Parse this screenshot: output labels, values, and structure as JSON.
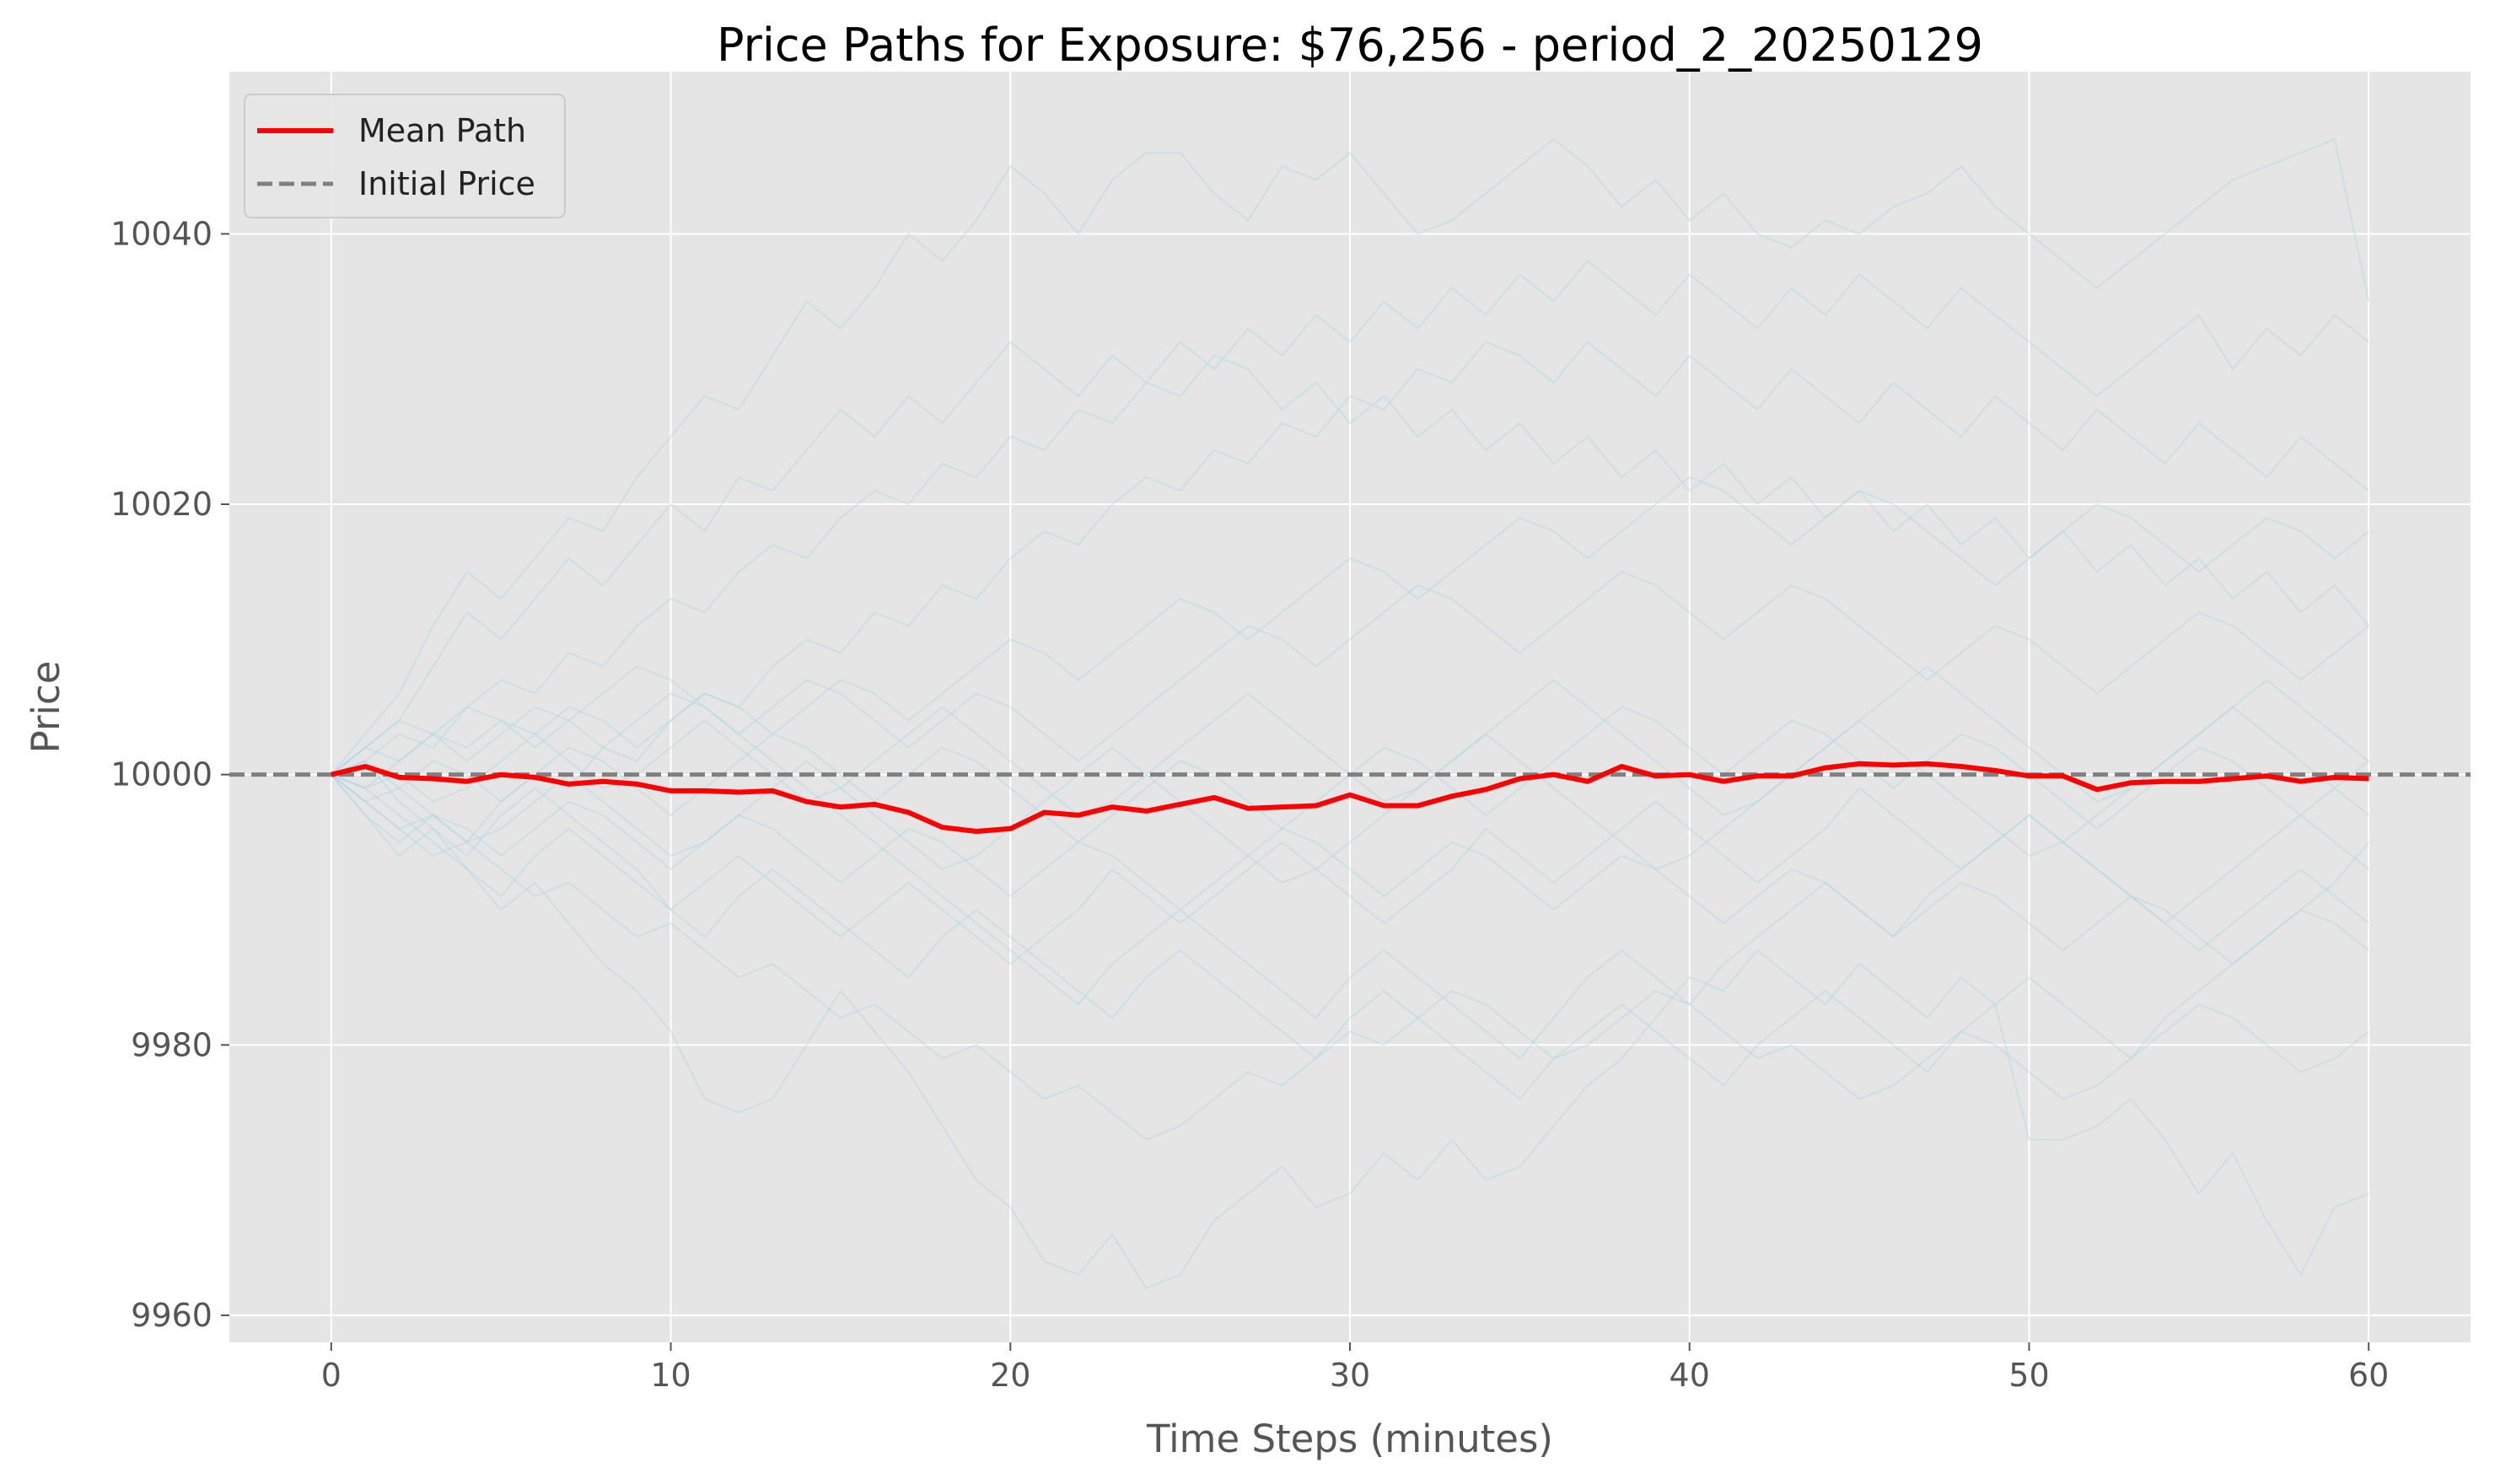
{
  "chart_data": {
    "type": "line",
    "title": "Price Paths for Exposure: $76,256 - period_2_20250129",
    "xlabel": "Time Steps (minutes)",
    "ylabel": "Price",
    "xlim": [
      -3,
      63
    ],
    "ylim": [
      9958,
      10052
    ],
    "x_ticks": [
      0,
      10,
      20,
      30,
      40,
      50,
      60
    ],
    "y_ticks": [
      9960,
      9980,
      10000,
      10020,
      10040
    ],
    "grid": true,
    "legend_position": "top-left",
    "background_color": "#e5e5e5",
    "grid_color": "#ffffff",
    "simulated_path_color": "#add8e6",
    "legend": [
      {
        "label": "Mean Path",
        "style": "solid",
        "color": "#ff0000"
      },
      {
        "label": "Initial Price",
        "style": "dashed",
        "color": "#808080"
      }
    ],
    "initial_price": 10000,
    "mean_path": {
      "name": "Mean Path",
      "color": "#ff0000",
      "x": [
        0,
        1,
        2,
        3,
        4,
        5,
        6,
        7,
        8,
        9,
        10,
        11,
        12,
        13,
        14,
        15,
        16,
        17,
        18,
        19,
        20,
        21,
        22,
        23,
        24,
        25,
        26,
        27,
        28,
        29,
        30,
        31,
        32,
        33,
        34,
        35,
        36,
        37,
        38,
        39,
        40,
        41,
        42,
        43,
        44,
        45,
        46,
        47,
        48,
        49,
        50,
        51,
        52,
        53,
        54,
        55,
        56,
        57,
        58,
        59,
        60
      ],
      "values": [
        10000.0,
        10000.6,
        9999.8,
        9999.7,
        9999.5,
        10000.0,
        9999.8,
        9999.3,
        9999.5,
        9999.3,
        9998.8,
        9998.8,
        9998.7,
        9998.8,
        9998.0,
        9997.6,
        9997.8,
        9997.2,
        9996.1,
        9995.8,
        9996.0,
        9997.2,
        9997.0,
        9997.6,
        9997.3,
        9997.8,
        9998.3,
        9997.5,
        9997.6,
        9997.7,
        9998.5,
        9997.7,
        9997.7,
        9998.4,
        9998.9,
        9999.7,
        10000.0,
        9999.5,
        10000.6,
        9999.9,
        10000.0,
        9999.5,
        9999.9,
        9999.9,
        10000.5,
        10000.8,
        10000.7,
        10000.8,
        10000.6,
        10000.3,
        9999.9,
        9999.9,
        9998.9,
        9999.4,
        9999.5,
        9999.5,
        9999.7,
        9999.9,
        9999.5,
        9999.8,
        9999.7
      ]
    },
    "simulated_paths_x": [
      0,
      1,
      2,
      3,
      4,
      5,
      6,
      7,
      8,
      9,
      10,
      11,
      12,
      13,
      14,
      15,
      16,
      17,
      18,
      19,
      20,
      21,
      22,
      23,
      24,
      25,
      26,
      27,
      28,
      29,
      30,
      31,
      32,
      33,
      34,
      35,
      36,
      37,
      38,
      39,
      40,
      41,
      42,
      43,
      44,
      45,
      46,
      47,
      48,
      49,
      50,
      51,
      52,
      53,
      54,
      55,
      56,
      57,
      58,
      59,
      60
    ],
    "simulated_paths": [
      [
        10000,
        10003,
        10006,
        10011,
        10015,
        10013,
        10016,
        10019,
        10018,
        10022,
        10025,
        10028,
        10027,
        10031,
        10035,
        10033,
        10036,
        10040,
        10038,
        10041,
        10045,
        10043,
        10040,
        10044,
        10046,
        10046,
        10043,
        10041,
        10045,
        10044,
        10046,
        10043,
        10040,
        10041,
        10043,
        10045,
        10047,
        10045,
        10042,
        10044,
        10041,
        10043,
        10040,
        10039,
        10041,
        10040,
        10042,
        10043,
        10045,
        10042,
        10040,
        10038,
        10036,
        10038,
        10040,
        10042,
        10044,
        10045,
        10046,
        10047,
        10035
      ],
      [
        10000,
        10002,
        10004,
        10008,
        10012,
        10010,
        10013,
        10016,
        10014,
        10017,
        10020,
        10018,
        10022,
        10021,
        10024,
        10027,
        10025,
        10028,
        10026,
        10029,
        10032,
        10030,
        10028,
        10031,
        10029,
        10032,
        10030,
        10033,
        10031,
        10034,
        10032,
        10035,
        10033,
        10036,
        10034,
        10037,
        10035,
        10038,
        10036,
        10034,
        10037,
        10035,
        10033,
        10036,
        10034,
        10037,
        10035,
        10033,
        10036,
        10034,
        10032,
        10030,
        10028,
        10030,
        10032,
        10034,
        10030,
        10033,
        10031,
        10034,
        10032
      ],
      [
        10000,
        10001,
        10003,
        10002,
        10005,
        10007,
        10006,
        10009,
        10008,
        10011,
        10013,
        10012,
        10015,
        10017,
        10016,
        10019,
        10021,
        10020,
        10023,
        10022,
        10025,
        10024,
        10027,
        10026,
        10029,
        10028,
        10031,
        10030,
        10027,
        10029,
        10026,
        10028,
        10025,
        10027,
        10024,
        10026,
        10023,
        10025,
        10022,
        10024,
        10021,
        10023,
        10020,
        10022,
        10019,
        10021,
        10018,
        10020,
        10017,
        10019,
        10016,
        10018,
        10015,
        10017,
        10014,
        10016,
        10013,
        10015,
        10012,
        10014,
        10011
      ],
      [
        10000,
        9998,
        9996,
        9997,
        9995,
        9998,
        10000,
        9999,
        10002,
        10001,
        10004,
        10006,
        10005,
        10008,
        10010,
        10009,
        10012,
        10011,
        10014,
        10013,
        10016,
        10018,
        10017,
        10020,
        10022,
        10021,
        10024,
        10023,
        10026,
        10025,
        10028,
        10027,
        10030,
        10029,
        10032,
        10031,
        10029,
        10032,
        10030,
        10028,
        10031,
        10029,
        10027,
        10030,
        10028,
        10026,
        10029,
        10027,
        10025,
        10028,
        10026,
        10024,
        10027,
        10025,
        10023,
        10026,
        10024,
        10022,
        10025,
        10023,
        10021
      ],
      [
        10000,
        9999,
        10001,
        10003,
        10002,
        10004,
        10003,
        10005,
        10004,
        10002,
        10004,
        10006,
        10005,
        10003,
        10005,
        10007,
        10006,
        10004,
        10006,
        10008,
        10010,
        10009,
        10007,
        10009,
        10011,
        10013,
        10012,
        10010,
        10012,
        10014,
        10016,
        10015,
        10013,
        10015,
        10017,
        10019,
        10018,
        10016,
        10018,
        10020,
        10022,
        10021,
        10019,
        10017,
        10019,
        10021,
        10020,
        10018,
        10016,
        10014,
        10016,
        10018,
        10020,
        10019,
        10017,
        10015,
        10017,
        10019,
        10018,
        10016,
        10018
      ],
      [
        10000,
        10002,
        10001,
        10003,
        10005,
        10004,
        10002,
        10004,
        10006,
        10008,
        10007,
        10005,
        10003,
        10005,
        10007,
        10006,
        10004,
        10002,
        10004,
        10006,
        10005,
        10003,
        10001,
        10003,
        10005,
        10007,
        10009,
        10011,
        10010,
        10008,
        10010,
        10012,
        10014,
        10013,
        10011,
        10009,
        10011,
        10013,
        10015,
        10014,
        10012,
        10010,
        10012,
        10014,
        10013,
        10011,
        10009,
        10007,
        10009,
        10011,
        10010,
        10008,
        10006,
        10008,
        10010,
        10012,
        10011,
        10009,
        10007,
        10009,
        10011
      ],
      [
        10000,
        10001,
        9999,
        10001,
        10000,
        9998,
        10000,
        10002,
        10001,
        9999,
        9997,
        9999,
        10001,
        10003,
        10002,
        10000,
        9998,
        10000,
        10002,
        10001,
        9999,
        9997,
        9995,
        9997,
        9999,
        10001,
        10000,
        9998,
        9996,
        9998,
        10000,
        10002,
        10001,
        9999,
        9997,
        9999,
        10001,
        10003,
        10005,
        10004,
        10002,
        10000,
        10002,
        10004,
        10003,
        10001,
        9999,
        10001,
        10003,
        10002,
        10000,
        9998,
        9996,
        9998,
        10000,
        10002,
        10001,
        9999,
        9997,
        9999,
        10001
      ],
      [
        10000,
        9997,
        9995,
        9997,
        9996,
        9994,
        9996,
        9998,
        9997,
        9995,
        9993,
        9995,
        9997,
        9996,
        9994,
        9992,
        9994,
        9996,
        9995,
        9993,
        9991,
        9993,
        9995,
        9994,
        9992,
        9990,
        9992,
        9994,
        9996,
        9995,
        9993,
        9991,
        9993,
        9995,
        9994,
        9992,
        9990,
        9992,
        9994,
        9993,
        9991,
        9989,
        9991,
        9993,
        9992,
        9990,
        9988,
        9990,
        9992,
        9991,
        9989,
        9987,
        9989,
        9991,
        9990,
        9988,
        9986,
        9988,
        9990,
        9989,
        9987
      ],
      [
        10000,
        9998,
        9996,
        9994,
        9995,
        9993,
        9991,
        9992,
        9990,
        9988,
        9989,
        9987,
        9985,
        9986,
        9984,
        9982,
        9983,
        9981,
        9979,
        9980,
        9978,
        9976,
        9977,
        9975,
        9973,
        9974,
        9976,
        9978,
        9977,
        9979,
        9981,
        9980,
        9982,
        9984,
        9983,
        9981,
        9979,
        9980,
        9982,
        9984,
        9983,
        9981,
        9979,
        9980,
        9978,
        9976,
        9977,
        9979,
        9981,
        9980,
        9978,
        9976,
        9977,
        9979,
        9981,
        9983,
        9982,
        9980,
        9978,
        9979,
        9981
      ],
      [
        10000,
        9997,
        9994,
        9996,
        9993,
        9990,
        9992,
        9989,
        9986,
        9984,
        9981,
        9976,
        9975,
        9976,
        9980,
        9984,
        9981,
        9978,
        9974,
        9970,
        9968,
        9964,
        9963,
        9966,
        9962,
        9963,
        9967,
        9969,
        9971,
        9968,
        9969,
        9972,
        9970,
        9973,
        9970,
        9971,
        9974,
        9977,
        9979,
        9982,
        9985,
        9984,
        9987,
        9985,
        9983,
        9986,
        9984,
        9982,
        9985,
        9983,
        9973,
        9973,
        9974,
        9976,
        9973,
        9969,
        9972,
        9967,
        9963,
        9968,
        9969
      ],
      [
        10000,
        9999,
        9997,
        9995,
        9993,
        9991,
        9994,
        9996,
        9994,
        9992,
        9990,
        9988,
        9991,
        9993,
        9991,
        9989,
        9987,
        9985,
        9988,
        9990,
        9988,
        9986,
        9984,
        9982,
        9985,
        9987,
        9985,
        9983,
        9981,
        9979,
        9982,
        9984,
        9982,
        9980,
        9978,
        9976,
        9979,
        9981,
        9983,
        9981,
        9979,
        9977,
        9980,
        9982,
        9984,
        9982,
        9980,
        9978,
        9981,
        9983,
        9985,
        9983,
        9981,
        9979,
        9982,
        9984,
        9986,
        9988,
        9990,
        9992,
        9995
      ],
      [
        10000,
        10001,
        9998,
        9996,
        9994,
        9997,
        9999,
        9997,
        9995,
        9993,
        9990,
        9992,
        9994,
        9992,
        9990,
        9988,
        9990,
        9992,
        9990,
        9988,
        9986,
        9988,
        9990,
        9993,
        9991,
        9989,
        9991,
        9993,
        9995,
        9993,
        9991,
        9989,
        9991,
        9993,
        9996,
        9994,
        9992,
        9994,
        9996,
        9998,
        9996,
        9994,
        9992,
        9994,
        9996,
        9999,
        9997,
        9995,
        9993,
        9995,
        9997,
        9995,
        9993,
        9991,
        9989,
        9991,
        9993,
        9995,
        9997,
        9995,
        9993
      ],
      [
        10000,
        9999,
        10000,
        9998,
        9999,
        10001,
        10003,
        10001,
        9999,
        10000,
        10002,
        10004,
        10002,
        10000,
        9998,
        9999,
        10001,
        10003,
        10005,
        10003,
        10001,
        9999,
        9997,
        9998,
        10000,
        10002,
        10004,
        10006,
        10004,
        10002,
        10000,
        9998,
        9999,
        10001,
        10003,
        10005,
        10007,
        10005,
        10003,
        10001,
        9999,
        9997,
        9998,
        10000,
        10002,
        10004,
        10006,
        10008,
        10006,
        10004,
        10002,
        10000,
        9998,
        9999,
        10001,
        10003,
        10005,
        10007,
        10005,
        10003,
        10001
      ],
      [
        10000,
        9998,
        9999,
        9997,
        9995,
        9996,
        9998,
        10000,
        9998,
        9996,
        9994,
        9995,
        9997,
        9999,
        10001,
        9999,
        9997,
        9995,
        9993,
        9994,
        9996,
        9998,
        10000,
        10002,
        10000,
        9998,
        9996,
        9994,
        9992,
        9993,
        9995,
        9997,
        9999,
        10001,
        10003,
        10001,
        9999,
        9997,
        9995,
        9993,
        9994,
        9996,
        9998,
        10000,
        10002,
        10004,
        10002,
        10000,
        9998,
        9996,
        9994,
        9995,
        9997,
        9999,
        10001,
        10003,
        10005,
        10003,
        10001,
        9999,
        9997
      ],
      [
        10000,
        10002,
        10004,
        10003,
        10001,
        10003,
        10005,
        10004,
        10002,
        10004,
        10006,
        10005,
        10003,
        10001,
        9999,
        9997,
        9995,
        9993,
        9991,
        9989,
        9987,
        9985,
        9983,
        9986,
        9988,
        9990,
        9988,
        9986,
        9984,
        9982,
        9985,
        9987,
        9985,
        9983,
        9981,
        9979,
        9982,
        9985,
        9987,
        9985,
        9983,
        9986,
        9988,
        9990,
        9992,
        9990,
        9988,
        9991,
        9993,
        9995,
        9997,
        9995,
        9993,
        9991,
        9989,
        9987,
        9989,
        9991,
        9993,
        9991,
        9989
      ]
    ]
  }
}
